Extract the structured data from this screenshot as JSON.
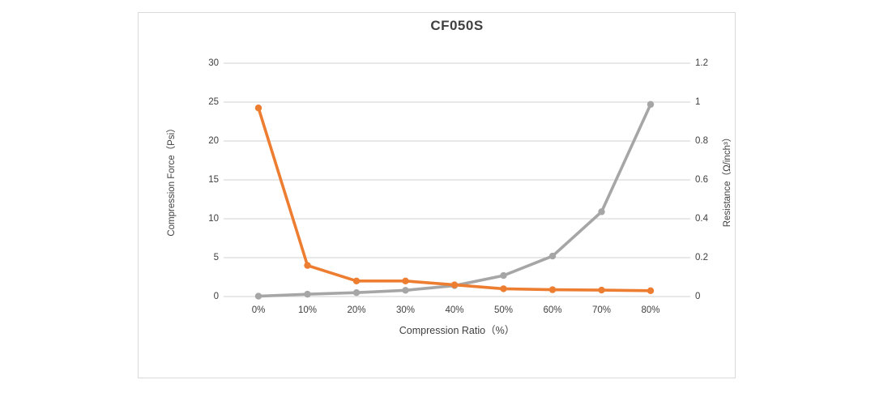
{
  "window": {
    "background": "#ffffff",
    "frame_border_color": "#d9d9d9"
  },
  "chart_data": {
    "type": "line",
    "title": "CF050S",
    "xlabel": "Compression Ratio（%）",
    "categories": [
      "0%",
      "10%",
      "20%",
      "30%",
      "40%",
      "50%",
      "60%",
      "70%",
      "80%"
    ],
    "grid": true,
    "legend_position": "none",
    "left_axis": {
      "label": "Compression Force（Psi）",
      "range": [
        0,
        30
      ],
      "tick_labels": [
        "0",
        "5",
        "10",
        "15",
        "20",
        "25",
        "30"
      ]
    },
    "right_axis": {
      "label": "Resistance（Ω/inch³）",
      "range": [
        0,
        1.2
      ],
      "tick_labels": [
        "0",
        "0.2",
        "0.4",
        "0.6",
        "0.8",
        "1",
        "1.2"
      ]
    },
    "series": [
      {
        "name": "Compression Force (Psi)",
        "axis": "left",
        "color": "#a6a6a6",
        "marker": "circle",
        "values": [
          0.05,
          0.3,
          0.5,
          0.8,
          1.4,
          2.7,
          5.2,
          10.9,
          24.7
        ]
      },
      {
        "name": "Resistance (Ω/inch³)",
        "axis": "right",
        "color": "#ed7d31",
        "marker": "circle",
        "values": [
          0.97,
          0.16,
          0.08,
          0.08,
          0.06,
          0.04,
          0.035,
          0.033,
          0.03
        ]
      }
    ],
    "gridline_color": "#d9d9d9"
  }
}
